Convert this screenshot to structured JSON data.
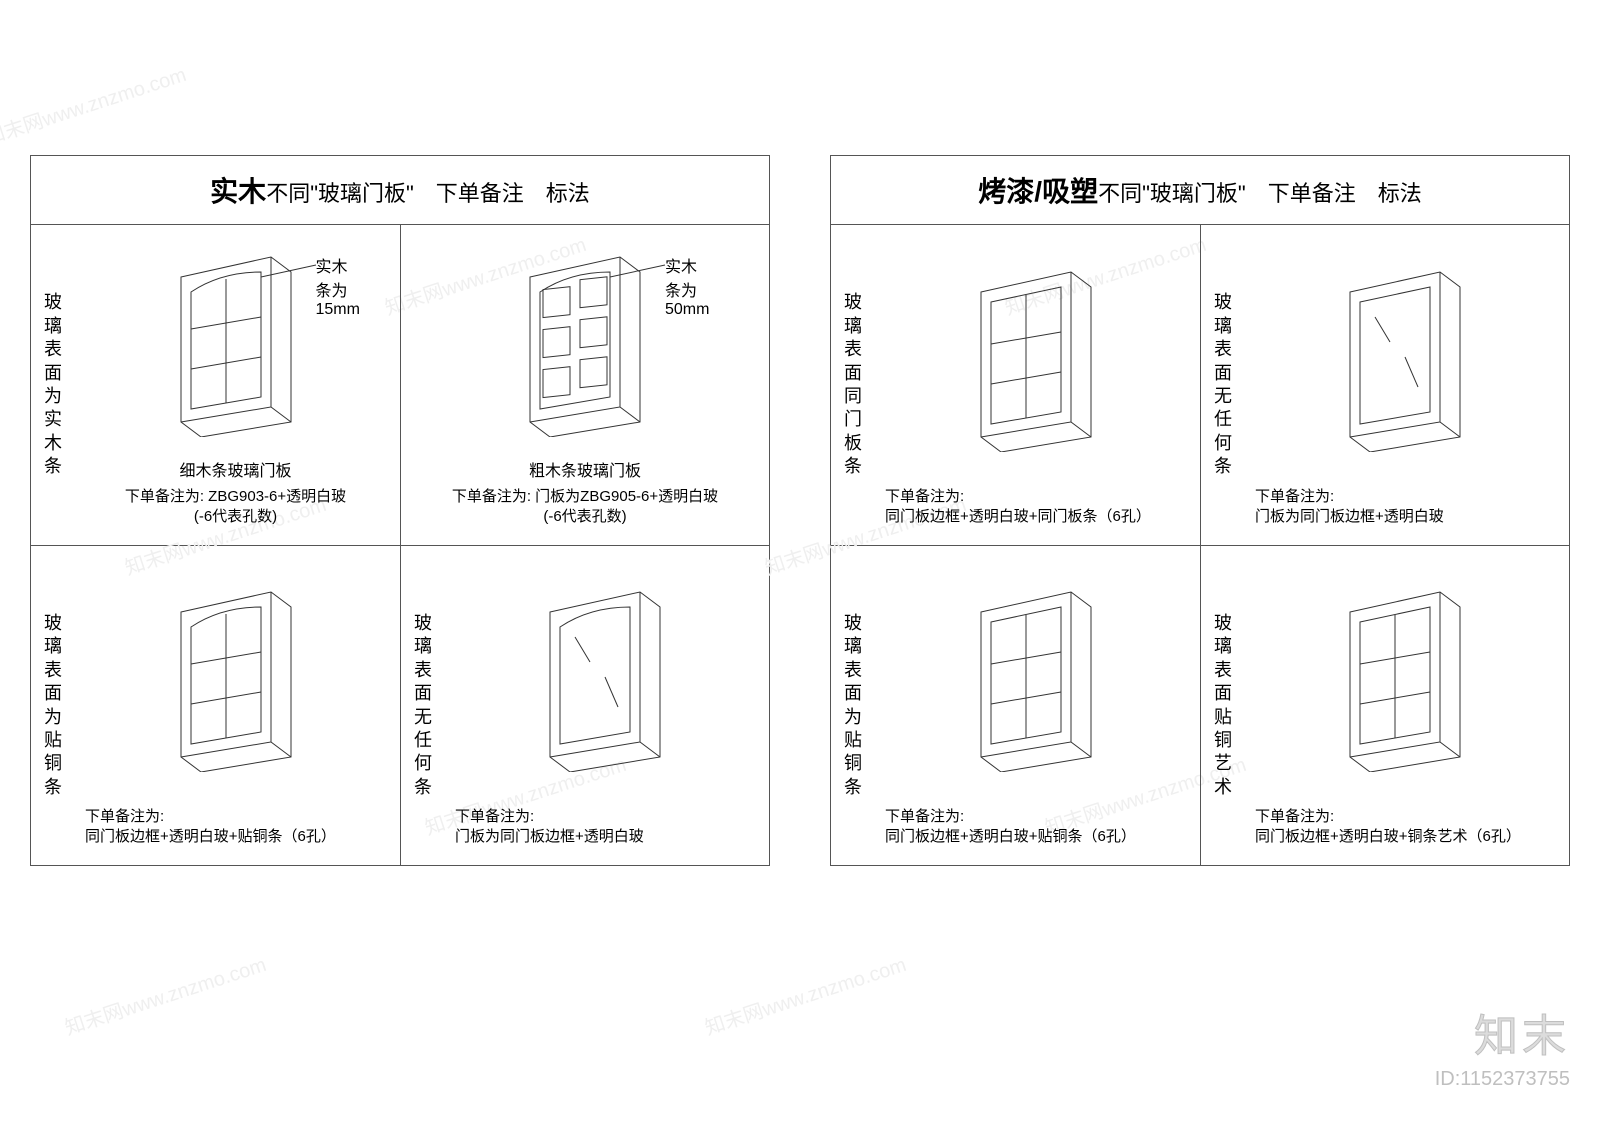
{
  "watermark": {
    "repeat_text": "知末网www.znzmo.com",
    "brand": "知末",
    "id_label": "ID:1152373755"
  },
  "colors": {
    "stroke": "#333333",
    "border": "#555555",
    "bg": "#ffffff",
    "wm_light": "#efefef",
    "wm_brand_fill": "#dcdcdc",
    "wm_brand_stroke": "#bfbfbf"
  },
  "door_svg": {
    "width": 150,
    "height": 190,
    "stroke_width": 1
  },
  "panels": [
    {
      "title_big": "实木",
      "title_rest": "不同\"玻璃门板\"　下单备注　标法",
      "rows": [
        [
          {
            "vlabel": "玻璃表面为实木条",
            "door_type": "arch_6pane_thin",
            "annotation": "实木条为15mm",
            "caption": "细木条玻璃门板",
            "note": "下单备注为: ZBG903-6+透明白玻\n(-6代表孔数)",
            "note_center": true
          },
          {
            "vlabel": "",
            "door_type": "arch_6pane_thick",
            "annotation": "实木条为50mm",
            "caption": "粗木条玻璃门板",
            "note": "下单备注为: 门板为ZBG905-6+透明白玻\n(-6代表孔数)",
            "note_center": true
          }
        ],
        [
          {
            "vlabel": "玻璃表面为贴铜条",
            "door_type": "arch_6pane_thin",
            "caption": "",
            "note": "下单备注为:\n同门板边框+透明白玻+贴铜条（6孔）"
          },
          {
            "vlabel": "玻璃表面无任何条",
            "door_type": "arch_plain",
            "caption": "",
            "note": "下单备注为:\n门板为同门板边框+透明白玻"
          }
        ]
      ]
    },
    {
      "title_big": "烤漆/吸塑",
      "title_rest": "不同\"玻璃门板\"　下单备注　标法",
      "rows": [
        [
          {
            "vlabel": "玻璃表面同门板条",
            "door_type": "rect_6pane",
            "caption": "",
            "note": "下单备注为:\n同门板边框+透明白玻+同门板条（6孔）"
          },
          {
            "vlabel": "玻璃表面无任何条",
            "door_type": "rect_plain",
            "caption": "",
            "note": "下单备注为:\n门板为同门板边框+透明白玻"
          }
        ],
        [
          {
            "vlabel": "玻璃表面为贴铜条",
            "door_type": "rect_6pane",
            "caption": "",
            "note": "下单备注为:\n同门板边框+透明白玻+贴铜条（6孔）"
          },
          {
            "vlabel": "玻璃表面贴铜艺术",
            "door_type": "rect_6pane",
            "caption": "",
            "note": "下单备注为:\n同门板边框+透明白玻+铜条艺术（6孔）"
          }
        ]
      ]
    }
  ]
}
